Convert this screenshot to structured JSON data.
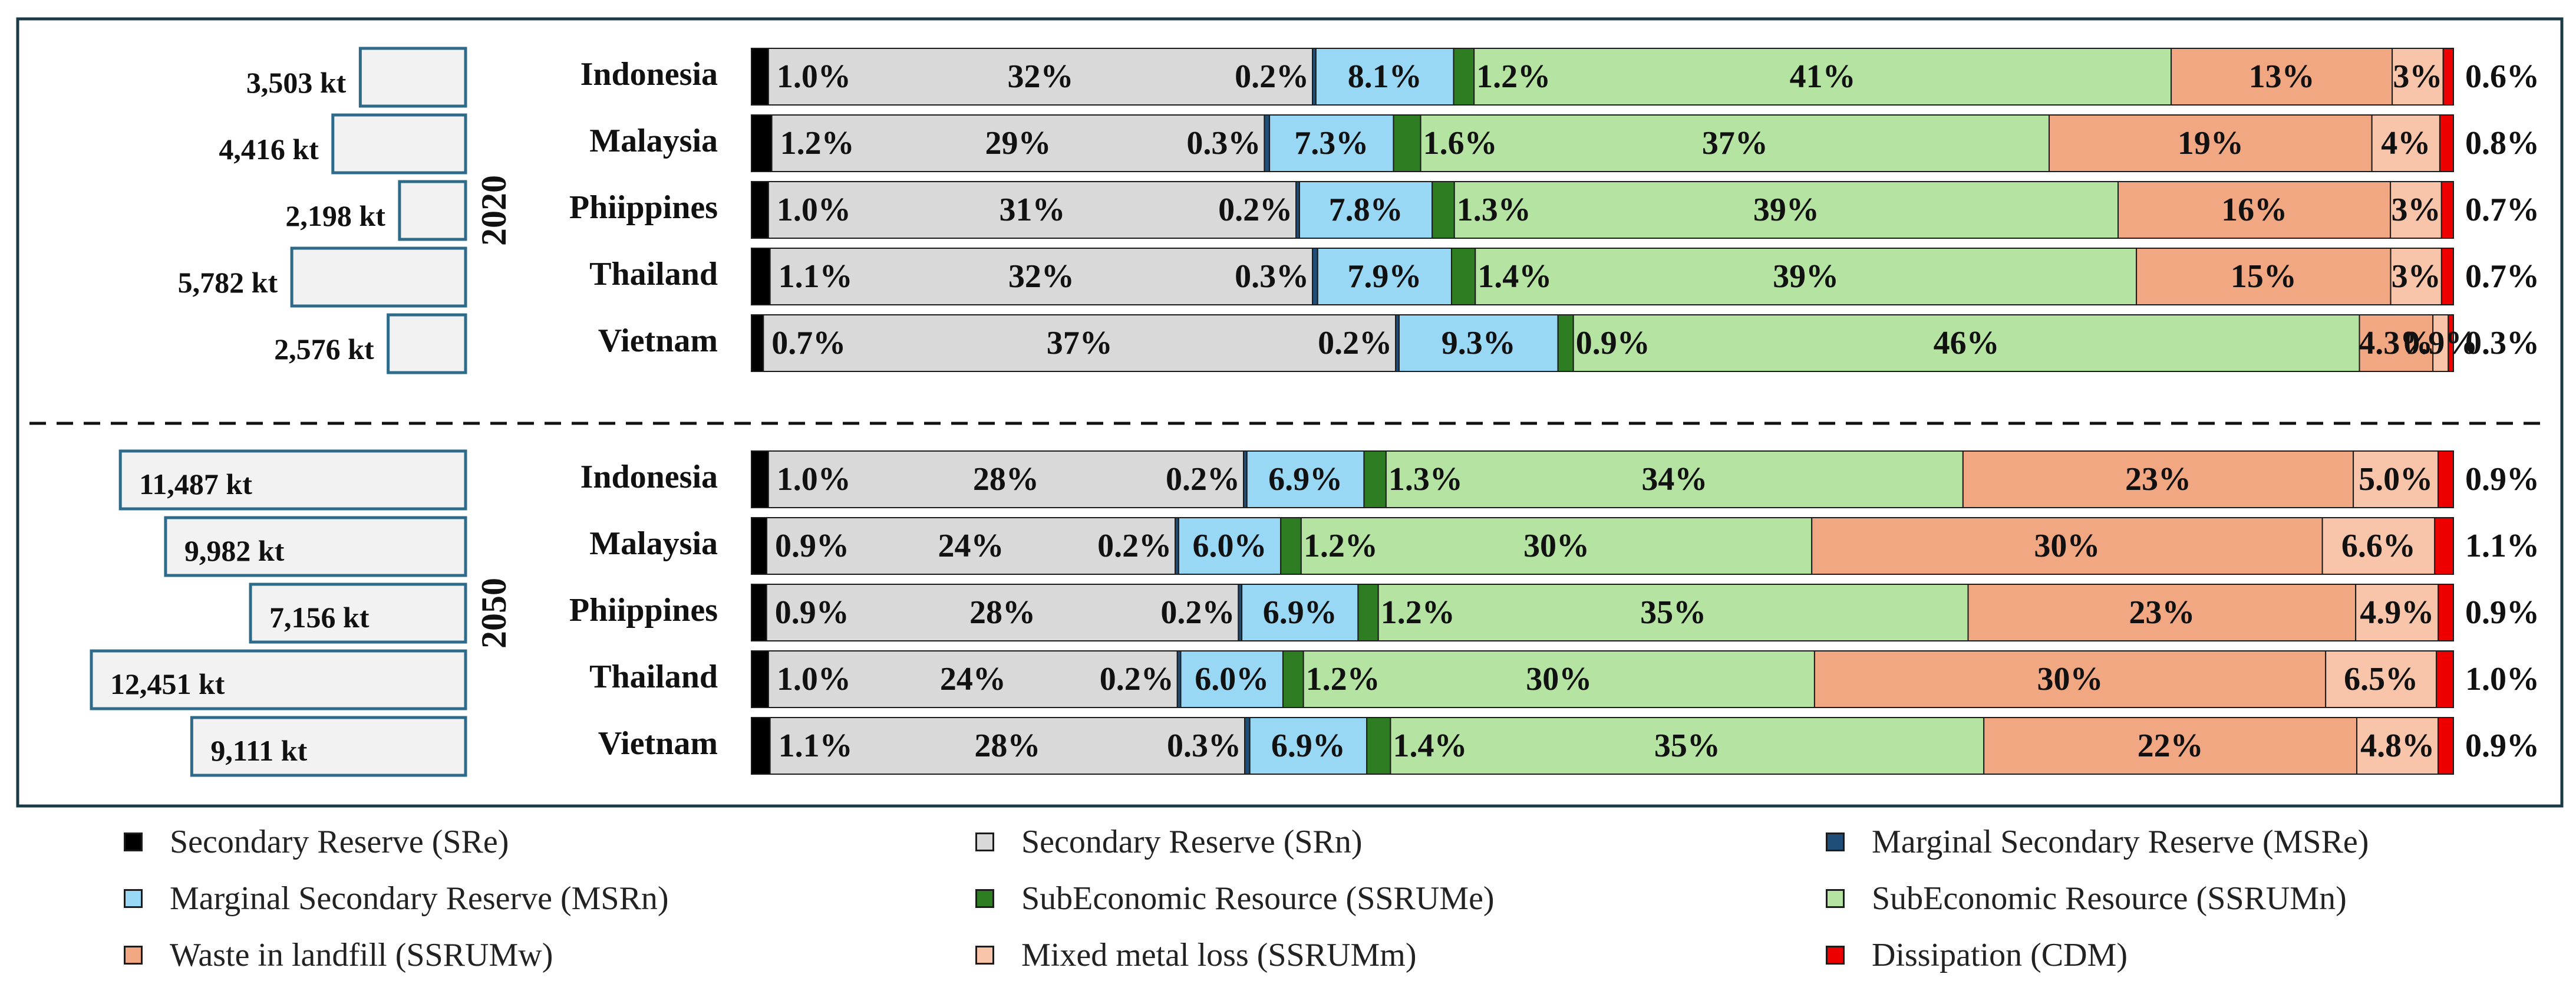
{
  "chart_data": {
    "type": "bar",
    "orientation": "horizontal",
    "stacked": "100%",
    "legend_position": "bottom",
    "colors": {
      "SRe": "#000000",
      "SRn": "#d9d9d9",
      "MSRe": "#1f4e79",
      "MSRn": "#99d8f5",
      "SSRUMe": "#2e7d22",
      "SSRUMn": "#b5e3a1",
      "SSRUMw": "#f1a782",
      "SSRUMm": "#f8c4aa",
      "CDM": "#ee0000",
      "total_box_fill": "#f2f2f2",
      "total_box_border": "#2e6b8a",
      "frame": "#1a3a45"
    },
    "series": [
      {
        "key": "SRe",
        "name": "Secondary Reserve (SRe)"
      },
      {
        "key": "SRn",
        "name": "Secondary Reserve (SRn)"
      },
      {
        "key": "MSRe",
        "name": "Marginal Secondary Reserve (MSRe)"
      },
      {
        "key": "MSRn",
        "name": "Marginal Secondary Reserve (MSRn)"
      },
      {
        "key": "SSRUMe",
        "name": "SubEconomic Resource (SSRUMe)"
      },
      {
        "key": "SSRUMn",
        "name": "SubEconomic Resource (SSRUMn)"
      },
      {
        "key": "SSRUMw",
        "name": "Waste in landfill (SSRUMw)"
      },
      {
        "key": "SSRUMm",
        "name": "Mixed metal loss (SSRUMm)"
      },
      {
        "key": "CDM",
        "name": "Dissipation (CDM)"
      }
    ],
    "panels": [
      {
        "year": "2020",
        "rows": [
          {
            "country": "Indonesia",
            "total": 3503,
            "total_label": "3,503 kt",
            "values": [
              1.0,
              32,
              0.2,
              8.1,
              1.2,
              41,
              13,
              3,
              0.6
            ],
            "labels": [
              "1.0%",
              "32%",
              "0.2%",
              "8.1%",
              "1.2%",
              "41%",
              "13%",
              "3%",
              "0.6%"
            ]
          },
          {
            "country": "Malaysia",
            "total": 4416,
            "total_label": "4,416 kt",
            "values": [
              1.2,
              29,
              0.3,
              7.3,
              1.6,
              37,
              19,
              4,
              0.8
            ],
            "labels": [
              "1.2%",
              "29%",
              "0.3%",
              "7.3%",
              "1.6%",
              "37%",
              "19%",
              "4%",
              "0.8%"
            ]
          },
          {
            "country": "Phiippines",
            "total": 2198,
            "total_label": "2,198 kt",
            "values": [
              1.0,
              31,
              0.2,
              7.8,
              1.3,
              39,
              16,
              3,
              0.7
            ],
            "labels": [
              "1.0%",
              "31%",
              "0.2%",
              "7.8%",
              "1.3%",
              "39%",
              "16%",
              "3%",
              "0.7%"
            ]
          },
          {
            "country": "Thailand",
            "total": 5782,
            "total_label": "5,782 kt",
            "values": [
              1.1,
              32,
              0.3,
              7.9,
              1.4,
              39,
              15,
              3,
              0.7
            ],
            "labels": [
              "1.1%",
              "32%",
              "0.3%",
              "7.9%",
              "1.4%",
              "39%",
              "15%",
              "3%",
              "0.7%"
            ]
          },
          {
            "country": "Vietnam",
            "total": 2576,
            "total_label": "2,576 kt",
            "values": [
              0.7,
              37,
              0.2,
              9.3,
              0.9,
              46,
              4.3,
              0.9,
              0.3
            ],
            "labels": [
              "0.7%",
              "37%",
              "0.2%",
              "9.3%",
              "0.9%",
              "46%",
              "4.3%",
              "0.9%",
              "0.3%"
            ]
          }
        ]
      },
      {
        "year": "2050",
        "rows": [
          {
            "country": "Indonesia",
            "total": 11487,
            "total_label": "11,487 kt",
            "values": [
              1.0,
              28,
              0.2,
              6.9,
              1.3,
              34,
              23,
              5.0,
              0.9
            ],
            "labels": [
              "1.0%",
              "28%",
              "0.2%",
              "6.9%",
              "1.3%",
              "34%",
              "23%",
              "5.0%",
              "0.9%"
            ]
          },
          {
            "country": "Malaysia",
            "total": 9982,
            "total_label": "9,982 kt",
            "values": [
              0.9,
              24,
              0.2,
              6.0,
              1.2,
              30,
              30,
              6.6,
              1.1
            ],
            "labels": [
              "0.9%",
              "24%",
              "0.2%",
              "6.0%",
              "1.2%",
              "30%",
              "30%",
              "6.6%",
              "1.1%"
            ]
          },
          {
            "country": "Phiippines",
            "total": 7156,
            "total_label": "7,156 kt",
            "values": [
              0.9,
              28,
              0.2,
              6.9,
              1.2,
              35,
              23,
              4.9,
              0.9
            ],
            "labels": [
              "0.9%",
              "28%",
              "0.2%",
              "6.9%",
              "1.2%",
              "35%",
              "23%",
              "4.9%",
              "0.9%"
            ]
          },
          {
            "country": "Thailand",
            "total": 12451,
            "total_label": "12,451 kt",
            "values": [
              1.0,
              24,
              0.2,
              6.0,
              1.2,
              30,
              30,
              6.5,
              1.0
            ],
            "labels": [
              "1.0%",
              "24%",
              "0.2%",
              "6.0%",
              "1.2%",
              "30%",
              "30%",
              "6.5%",
              "1.0%"
            ]
          },
          {
            "country": "Vietnam",
            "total": 9111,
            "total_label": "9,111 kt",
            "values": [
              1.1,
              28,
              0.3,
              6.9,
              1.4,
              35,
              22,
              4.8,
              0.9
            ],
            "labels": [
              "1.1%",
              "28%",
              "0.3%",
              "6.9%",
              "1.4%",
              "35%",
              "22%",
              "4.8%",
              "0.9%"
            ]
          }
        ]
      }
    ]
  }
}
